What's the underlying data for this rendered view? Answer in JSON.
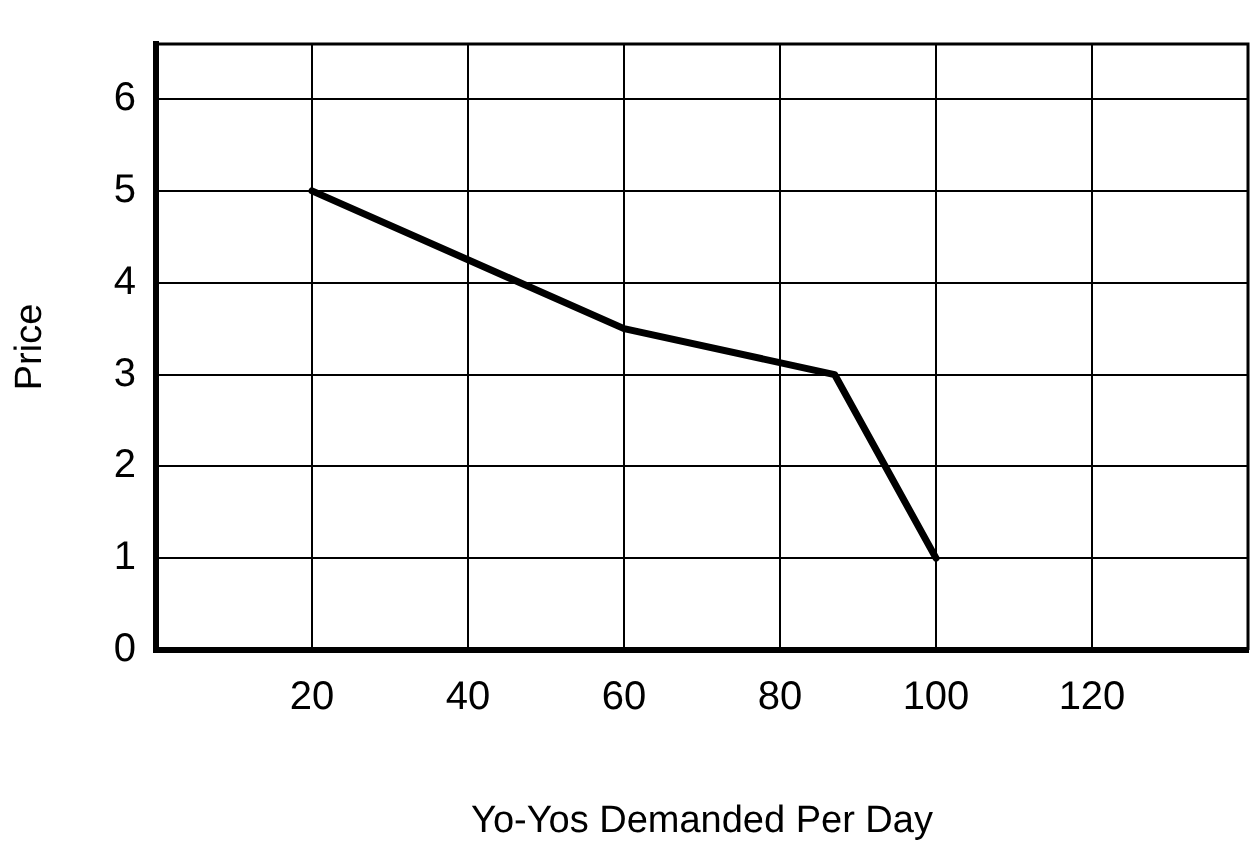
{
  "chart_data": {
    "type": "line",
    "xlabel": "Yo-Yos Demanded Per Day",
    "ylabel": "Price",
    "x": [
      20,
      60,
      87,
      100
    ],
    "series": [
      {
        "color": "#000000",
        "values": [
          5,
          3.5,
          3,
          1
        ]
      }
    ],
    "xlim": [
      0,
      140
    ],
    "xticks": [
      20,
      40,
      60,
      80,
      100,
      120
    ],
    "ylim": [
      0,
      6.6
    ],
    "yticks": [
      0,
      1,
      2,
      3,
      4,
      5,
      6
    ],
    "grid": true,
    "legend": false,
    "marker": "none",
    "line_style": "solid"
  }
}
